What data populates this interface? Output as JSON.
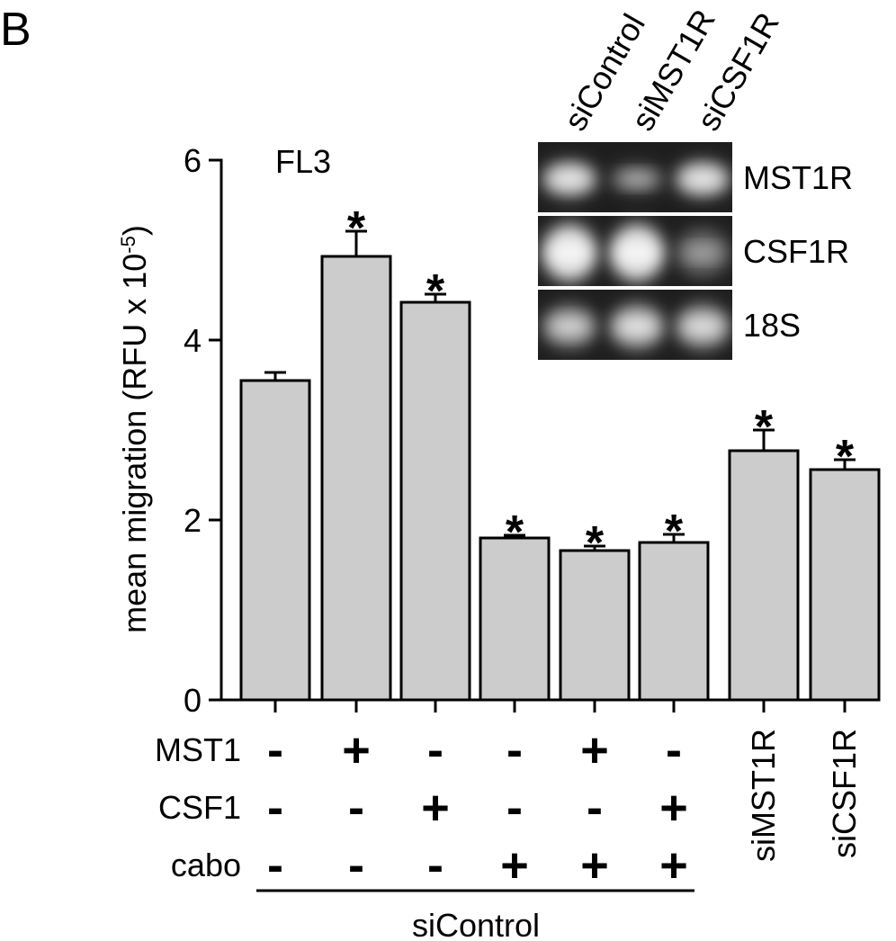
{
  "panel_label": "B",
  "chart_data": {
    "type": "bar",
    "title": "FL3",
    "ylabel": "mean migration (RFU x 10",
    "ylabel_sup": "-5",
    "ylabel_tail": ")",
    "ylim": [
      0,
      6
    ],
    "yticks": [
      "0",
      "2",
      "4",
      "6"
    ],
    "grid": false,
    "bar_color": "#cccccc",
    "values": [
      3.55,
      4.93,
      4.42,
      1.8,
      1.66,
      1.75,
      2.77,
      2.56
    ],
    "errors": [
      0.09,
      0.28,
      0.09,
      0.03,
      0.05,
      0.09,
      0.23,
      0.11
    ],
    "significant": [
      false,
      true,
      true,
      true,
      true,
      true,
      true,
      true
    ],
    "star_label": "*",
    "condition_rows": [
      {
        "label": "MST1",
        "values": [
          "-",
          "+",
          "-",
          "-",
          "+",
          "-"
        ]
      },
      {
        "label": "CSF1",
        "values": [
          "-",
          "-",
          "+",
          "-",
          "-",
          "+"
        ]
      },
      {
        "label": "cabo",
        "values": [
          "-",
          "-",
          "-",
          "+",
          "+",
          "+"
        ]
      }
    ],
    "vertical_labels": [
      "siMST1R",
      "siCSF1R"
    ],
    "group_label": "siControl"
  },
  "inset": {
    "lanes": [
      "siControl",
      "siMST1R",
      "siCSF1R"
    ],
    "rows": [
      {
        "label": "MST1R",
        "band_strength": [
          0.9,
          0.45,
          0.9
        ]
      },
      {
        "label": "CSF1R",
        "band_strength": [
          1.0,
          1.0,
          0.4
        ]
      },
      {
        "label": "18S",
        "band_strength": [
          0.8,
          0.95,
          0.9
        ]
      }
    ]
  }
}
